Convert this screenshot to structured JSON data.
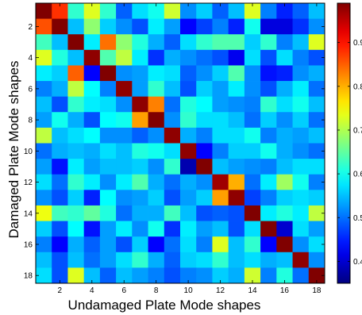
{
  "chart_data": {
    "type": "heatmap",
    "title": "",
    "xlabel": "Undamaged Plate Mode shapes",
    "ylabel": "Damaged Plate Mode shapes",
    "x_ticks": [
      "2",
      "4",
      "6",
      "8",
      "10",
      "12",
      "14",
      "16",
      "18"
    ],
    "y_ticks": [
      "2",
      "4",
      "6",
      "8",
      "10",
      "12",
      "14",
      "16",
      "18"
    ],
    "rows": 18,
    "cols": 18,
    "colorbar": {
      "min": 0.35,
      "max": 0.99,
      "ticks": [
        "0.4",
        "0.5",
        "0.6",
        "0.7",
        "0.8",
        "0.9"
      ],
      "colormap": "jet"
    },
    "grid": false,
    "values": [
      [
        0.99,
        0.88,
        0.62,
        0.73,
        0.62,
        0.49,
        0.57,
        0.6,
        0.72,
        0.52,
        0.56,
        0.49,
        0.55,
        0.73,
        0.51,
        0.45,
        0.49,
        0.55
      ],
      [
        0.86,
        0.99,
        0.55,
        0.68,
        0.56,
        0.52,
        0.48,
        0.58,
        0.53,
        0.43,
        0.47,
        0.51,
        0.45,
        0.6,
        0.41,
        0.41,
        0.46,
        0.52
      ],
      [
        0.63,
        0.55,
        0.99,
        0.58,
        0.84,
        0.68,
        0.61,
        0.54,
        0.49,
        0.57,
        0.62,
        0.64,
        0.64,
        0.56,
        0.62,
        0.51,
        0.55,
        0.73
      ],
      [
        0.73,
        0.61,
        0.55,
        0.98,
        0.64,
        0.71,
        0.58,
        0.46,
        0.54,
        0.52,
        0.5,
        0.48,
        0.42,
        0.57,
        0.48,
        0.57,
        0.51,
        0.48
      ],
      [
        0.58,
        0.56,
        0.85,
        0.43,
        0.99,
        0.52,
        0.53,
        0.58,
        0.57,
        0.49,
        0.52,
        0.56,
        0.64,
        0.52,
        0.44,
        0.45,
        0.52,
        0.54
      ],
      [
        0.51,
        0.54,
        0.71,
        0.59,
        0.51,
        0.98,
        0.53,
        0.62,
        0.55,
        0.48,
        0.56,
        0.53,
        0.58,
        0.52,
        0.48,
        0.54,
        0.58,
        0.5
      ],
      [
        0.55,
        0.48,
        0.62,
        0.58,
        0.57,
        0.52,
        0.98,
        0.83,
        0.5,
        0.61,
        0.59,
        0.53,
        0.52,
        0.51,
        0.62,
        0.57,
        0.6,
        0.55
      ],
      [
        0.53,
        0.6,
        0.54,
        0.48,
        0.59,
        0.6,
        0.81,
        0.99,
        0.52,
        0.62,
        0.57,
        0.57,
        0.55,
        0.5,
        0.56,
        0.52,
        0.56,
        0.5
      ],
      [
        0.71,
        0.55,
        0.57,
        0.59,
        0.52,
        0.52,
        0.49,
        0.52,
        0.98,
        0.54,
        0.51,
        0.57,
        0.57,
        0.6,
        0.51,
        0.54,
        0.53,
        0.55
      ],
      [
        0.5,
        0.54,
        0.55,
        0.54,
        0.57,
        0.55,
        0.61,
        0.6,
        0.57,
        0.98,
        0.43,
        0.51,
        0.56,
        0.56,
        0.6,
        0.54,
        0.52,
        0.5
      ],
      [
        0.53,
        0.44,
        0.58,
        0.53,
        0.55,
        0.55,
        0.56,
        0.52,
        0.62,
        0.38,
        0.99,
        0.55,
        0.53,
        0.52,
        0.51,
        0.55,
        0.57,
        0.57
      ],
      [
        0.57,
        0.5,
        0.62,
        0.58,
        0.52,
        0.58,
        0.64,
        0.54,
        0.5,
        0.54,
        0.52,
        0.97,
        0.8,
        0.5,
        0.58,
        0.69,
        0.6,
        0.51
      ],
      [
        0.52,
        0.48,
        0.56,
        0.45,
        0.59,
        0.52,
        0.53,
        0.56,
        0.48,
        0.53,
        0.56,
        0.81,
        0.98,
        0.47,
        0.51,
        0.56,
        0.57,
        0.56
      ],
      [
        0.74,
        0.63,
        0.62,
        0.65,
        0.61,
        0.5,
        0.54,
        0.54,
        0.63,
        0.55,
        0.48,
        0.49,
        0.48,
        0.99,
        0.58,
        0.61,
        0.58,
        0.71
      ],
      [
        0.56,
        0.48,
        0.59,
        0.44,
        0.53,
        0.58,
        0.52,
        0.6,
        0.46,
        0.58,
        0.53,
        0.55,
        0.48,
        0.57,
        0.99,
        0.4,
        0.57,
        0.53
      ],
      [
        0.51,
        0.43,
        0.54,
        0.49,
        0.53,
        0.48,
        0.56,
        0.43,
        0.5,
        0.57,
        0.51,
        0.73,
        0.55,
        0.62,
        0.43,
        0.99,
        0.52,
        0.57
      ],
      [
        0.55,
        0.48,
        0.55,
        0.5,
        0.53,
        0.57,
        0.62,
        0.54,
        0.49,
        0.56,
        0.57,
        0.62,
        0.55,
        0.57,
        0.54,
        0.55,
        0.98,
        0.52
      ],
      [
        0.57,
        0.48,
        0.73,
        0.55,
        0.49,
        0.55,
        0.53,
        0.51,
        0.48,
        0.51,
        0.52,
        0.56,
        0.54,
        0.72,
        0.51,
        0.61,
        0.5,
        0.99
      ]
    ]
  }
}
